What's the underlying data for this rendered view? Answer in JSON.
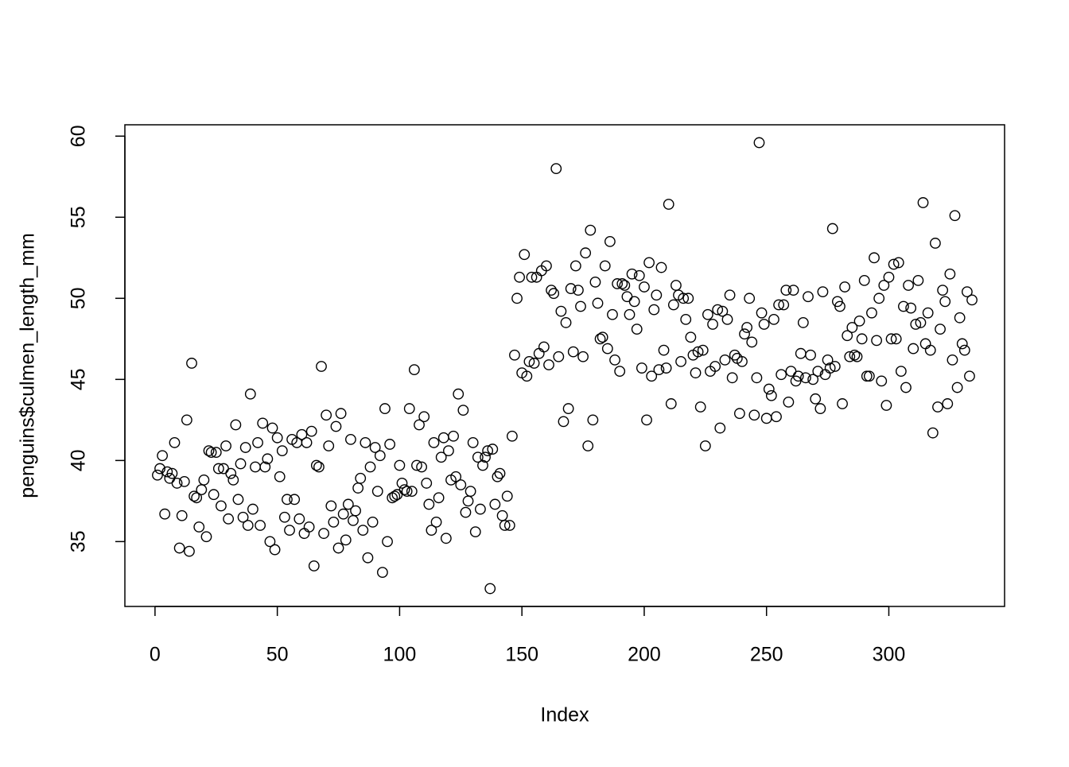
{
  "chart_data": {
    "type": "scatter",
    "x_label": "Index",
    "y_label": "penguins$culmen_length_mm",
    "xlim": [
      -12.32,
      347.32
    ],
    "ylim": [
      31.0,
      60.7
    ],
    "xticks": [
      0,
      50,
      100,
      150,
      200,
      250,
      300
    ],
    "yticks": [
      35,
      40,
      45,
      50,
      55,
      60
    ],
    "grid": false,
    "series": [
      {
        "color": "#000000",
        "x": [
          1,
          2,
          3,
          4,
          5,
          6,
          7,
          8,
          9,
          10,
          11,
          12,
          13,
          14,
          15,
          16,
          17,
          18,
          19,
          20,
          21,
          22,
          23,
          24,
          25,
          26,
          27,
          28,
          29,
          30,
          31,
          32,
          33,
          34,
          35,
          36,
          37,
          38,
          39,
          40,
          41,
          42,
          43,
          44,
          45,
          46,
          47,
          48,
          49,
          50,
          51,
          52,
          53,
          54,
          55,
          56,
          57,
          58,
          59,
          60,
          61,
          62,
          63,
          64,
          65,
          66,
          67,
          68,
          69,
          70,
          71,
          72,
          73,
          74,
          75,
          76,
          77,
          78,
          79,
          80,
          81,
          82,
          83,
          84,
          85,
          86,
          87,
          88,
          89,
          90,
          91,
          92,
          93,
          94,
          95,
          96,
          97,
          98,
          99,
          100,
          101,
          102,
          103,
          104,
          105,
          106,
          107,
          108,
          109,
          110,
          111,
          112,
          113,
          114,
          115,
          116,
          117,
          118,
          119,
          120,
          121,
          122,
          123,
          124,
          125,
          126,
          127,
          128,
          129,
          130,
          131,
          132,
          133,
          134,
          135,
          136,
          137,
          138,
          139,
          140,
          141,
          142,
          143,
          144,
          145,
          146,
          147,
          148,
          149,
          150,
          151,
          152,
          153,
          154,
          155,
          156,
          157,
          158,
          159,
          160,
          161,
          162,
          163,
          164,
          165,
          166,
          167,
          168,
          169,
          170,
          171,
          172,
          173,
          174,
          175,
          176,
          177,
          178,
          179,
          180,
          181,
          182,
          183,
          184,
          185,
          186,
          187,
          188,
          189,
          190,
          191,
          192,
          193,
          194,
          195,
          196,
          197,
          198,
          199,
          200,
          201,
          202,
          203,
          204,
          205,
          206,
          207,
          208,
          209,
          210,
          211,
          212,
          213,
          214,
          215,
          216,
          217,
          218,
          219,
          220,
          221,
          222,
          223,
          224,
          225,
          226,
          227,
          228,
          229,
          230,
          231,
          232,
          233,
          234,
          235,
          236,
          237,
          238,
          239,
          240,
          241,
          242,
          243,
          244,
          245,
          246,
          247,
          248,
          249,
          250,
          251,
          252,
          253,
          254,
          255,
          256,
          257,
          258,
          259,
          260,
          261,
          262,
          263,
          264,
          265,
          266,
          267,
          268,
          269,
          270,
          271,
          272,
          273,
          274,
          275,
          276,
          277,
          278,
          279,
          280,
          281,
          282,
          283,
          284,
          285,
          286,
          287,
          288,
          289,
          290,
          291,
          292,
          293,
          294,
          295,
          296,
          297,
          298,
          299,
          300,
          301,
          302,
          303,
          304,
          305,
          306,
          307,
          308,
          309,
          310,
          311,
          312,
          313,
          314,
          315,
          316,
          317,
          318,
          319,
          320,
          321,
          322,
          323,
          324,
          325,
          326,
          327,
          328,
          329,
          330,
          331,
          332,
          333,
          334
        ],
        "values": [
          39.1,
          39.5,
          40.3,
          36.7,
          39.3,
          38.9,
          39.2,
          41.1,
          38.6,
          34.6,
          36.6,
          38.7,
          42.5,
          34.4,
          46.0,
          37.8,
          37.7,
          35.9,
          38.2,
          38.8,
          35.3,
          40.6,
          40.5,
          37.9,
          40.5,
          39.5,
          37.2,
          39.5,
          40.9,
          36.4,
          39.2,
          38.8,
          42.2,
          37.6,
          39.8,
          36.5,
          40.8,
          36.0,
          44.1,
          37.0,
          39.6,
          41.1,
          36.0,
          42.3,
          39.6,
          40.1,
          35.0,
          42.0,
          34.5,
          41.4,
          39.0,
          40.6,
          36.5,
          37.6,
          35.7,
          41.3,
          37.6,
          41.1,
          36.4,
          41.6,
          35.5,
          41.1,
          35.9,
          41.8,
          33.5,
          39.7,
          39.6,
          45.8,
          35.5,
          42.8,
          40.9,
          37.2,
          36.2,
          42.1,
          34.6,
          42.9,
          36.7,
          35.1,
          37.3,
          41.3,
          36.3,
          36.9,
          38.3,
          38.9,
          35.7,
          41.1,
          34.0,
          39.6,
          36.2,
          40.8,
          38.1,
          40.3,
          33.1,
          43.2,
          35.0,
          41.0,
          37.7,
          37.8,
          37.9,
          39.7,
          38.6,
          38.2,
          38.1,
          43.2,
          38.1,
          45.6,
          39.7,
          42.2,
          39.6,
          42.7,
          38.6,
          37.3,
          35.7,
          41.1,
          36.2,
          37.7,
          40.2,
          41.4,
          35.2,
          40.6,
          38.8,
          41.5,
          39.0,
          44.1,
          38.5,
          43.1,
          36.8,
          37.5,
          38.1,
          41.1,
          35.6,
          40.2,
          37.0,
          39.7,
          40.2,
          40.6,
          32.1,
          40.7,
          37.3,
          39.0,
          39.2,
          36.6,
          36.0,
          37.8,
          36.0,
          41.5,
          46.5,
          50.0,
          51.3,
          45.4,
          52.7,
          45.2,
          46.1,
          51.3,
          46.0,
          51.3,
          46.6,
          51.7,
          47.0,
          52.0,
          45.9,
          50.5,
          50.3,
          58.0,
          46.4,
          49.2,
          42.4,
          48.5,
          43.2,
          50.6,
          46.7,
          52.0,
          50.5,
          49.5,
          46.4,
          52.8,
          40.9,
          54.2,
          42.5,
          51.0,
          49.7,
          47.5,
          47.6,
          52.0,
          46.9,
          53.5,
          49.0,
          46.2,
          50.9,
          45.5,
          50.9,
          50.8,
          50.1,
          49.0,
          51.5,
          49.8,
          48.1,
          51.4,
          45.7,
          50.7,
          42.5,
          52.2,
          45.2,
          49.3,
          50.2,
          45.6,
          51.9,
          46.8,
          45.7,
          55.8,
          43.5,
          49.6,
          50.8,
          50.2,
          46.1,
          50.0,
          48.7,
          50.0,
          47.6,
          46.5,
          45.4,
          46.7,
          43.3,
          46.8,
          40.9,
          49.0,
          45.5,
          48.4,
          45.8,
          49.3,
          42.0,
          49.2,
          46.2,
          48.7,
          50.2,
          45.1,
          46.5,
          46.3,
          42.9,
          46.1,
          47.8,
          48.2,
          50.0,
          47.3,
          42.8,
          45.1,
          59.6,
          49.1,
          48.4,
          42.6,
          44.4,
          44.0,
          48.7,
          42.7,
          49.6,
          45.3,
          49.6,
          50.5,
          43.6,
          45.5,
          50.5,
          44.9,
          45.2,
          46.6,
          48.5,
          45.1,
          50.1,
          46.5,
          45.0,
          43.8,
          45.5,
          43.2,
          50.4,
          45.3,
          46.2,
          45.7,
          54.3,
          45.8,
          49.8,
          49.5,
          43.5,
          50.7,
          47.7,
          46.4,
          48.2,
          46.5,
          46.4,
          48.6,
          47.5,
          51.1,
          45.2,
          45.2,
          49.1,
          52.5,
          47.4,
          50.0,
          44.9,
          50.8,
          43.4,
          51.3,
          47.5,
          52.1,
          47.5,
          52.2,
          45.5,
          49.5,
          44.5,
          50.8,
          49.4,
          46.9,
          48.4,
          51.1,
          48.5,
          55.9,
          47.2,
          49.1,
          46.8,
          41.7,
          53.4,
          43.3,
          48.1,
          50.5,
          49.8,
          43.5,
          51.5,
          46.2,
          55.1,
          44.5,
          48.8,
          47.2,
          46.8,
          50.4,
          45.2,
          49.9
        ]
      }
    ]
  }
}
